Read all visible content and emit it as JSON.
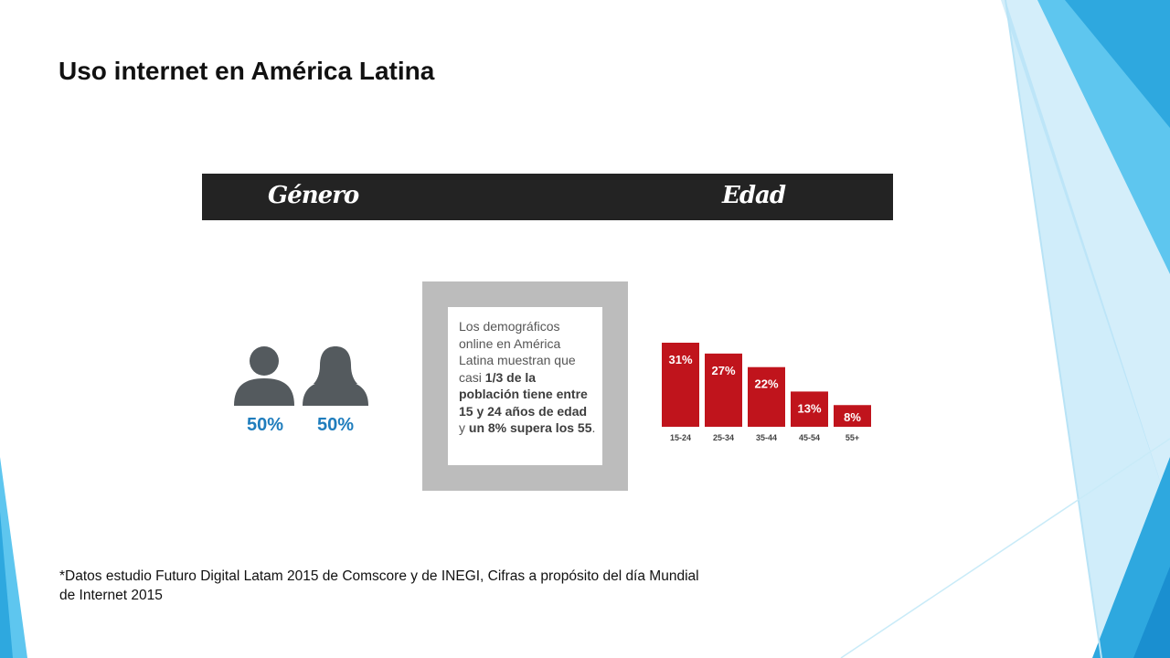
{
  "slide": {
    "title": "Uso internet en América Latina",
    "footnote_line1": "*Datos estudio Futuro Digital Latam 2015 de Comscore y de INEGI, Cifras a propósito del día Mundial",
    "footnote_line2": "de Internet 2015"
  },
  "infographic": {
    "header": {
      "gender_label": "Género",
      "age_label": "Edad"
    },
    "gender": {
      "male_icon": "male-person-icon",
      "female_icon": "female-person-icon",
      "male_pct": "50%",
      "female_pct": "50%",
      "icon_color": "#545a5e",
      "pct_color": "#1f7dbd"
    },
    "text_box": {
      "t1": "Los demográficos online en América Latina muestran que casi ",
      "b1": "1/3 de la población tiene entre 15 y 24 años de edad",
      "t2": " y ",
      "b2": "un 8% supera los 55",
      "t3": "."
    }
  },
  "chart_data": {
    "type": "bar",
    "categories": [
      "15-24",
      "25-34",
      "35-44",
      "45-54",
      "55+"
    ],
    "values": [
      31,
      27,
      22,
      13,
      8
    ],
    "value_labels": [
      "31%",
      "27%",
      "22%",
      "13%",
      "8%"
    ],
    "bar_color": "#c0141c",
    "label_color": "#ffffff",
    "ylim": [
      0,
      31
    ]
  }
}
